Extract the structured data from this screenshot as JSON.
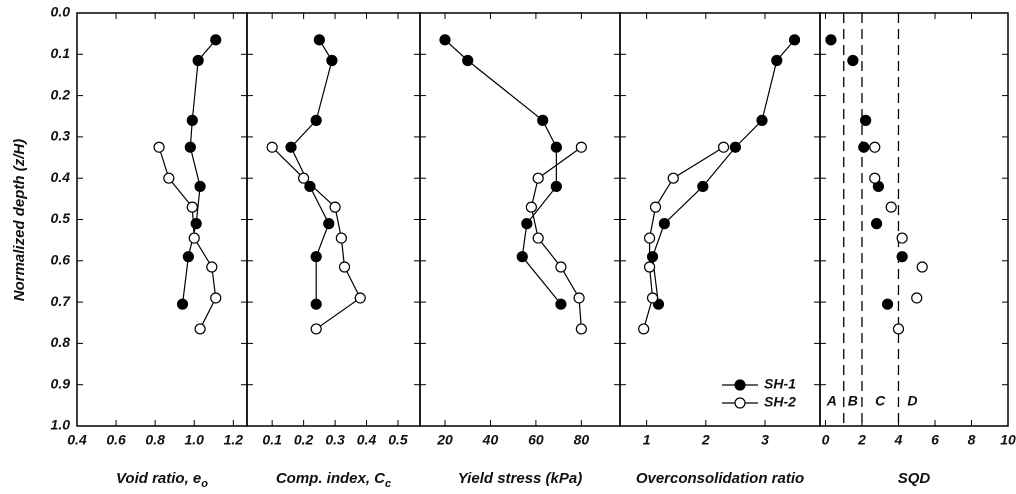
{
  "chart_data": [
    {
      "type": "line",
      "ylabel": "Normalized depth (z/H)",
      "ylim": [
        0,
        1
      ],
      "yticks": [
        {
          "value": 0,
          "label": "0.0"
        },
        0.1,
        0.2,
        0.3,
        0.4,
        0.5,
        0.6,
        0.7,
        0.8,
        0.9,
        {
          "value": 1,
          "label": "1.0"
        }
      ],
      "xlabel": "Void ratio, e",
      "xlabel_sub": "o",
      "xlim": [
        0.4,
        1.27
      ],
      "xticks": [
        0.4,
        0.6,
        0.8,
        {
          "value": 1,
          "label": "1.0"
        },
        1.2
      ],
      "series": [
        {
          "color": "#000000",
          "marker_fill": "#000000",
          "x": [
            1.11,
            1.02,
            0.99,
            0.98,
            1.03,
            1.01,
            0.97,
            0.94
          ],
          "y": [
            0.065,
            0.115,
            0.26,
            0.325,
            0.42,
            0.51,
            0.59,
            0.705
          ]
        },
        {
          "color": "#000000",
          "marker_fill": "#ffffff",
          "x": [
            0.82,
            0.87,
            0.99,
            1.0,
            1.09,
            1.11,
            1.03
          ],
          "y": [
            0.325,
            0.4,
            0.47,
            0.545,
            0.615,
            0.69,
            0.765
          ]
        }
      ]
    },
    {
      "type": "line",
      "xlabel": "Comp. index, C",
      "xlabel_sub": "c",
      "xlim": [
        0.02,
        0.57
      ],
      "xticks": [
        0.1,
        0.2,
        0.3,
        0.4,
        0.5
      ],
      "series": [
        {
          "color": "#000000",
          "marker_fill": "#000000",
          "x": [
            0.25,
            0.29,
            0.24,
            0.16,
            0.22,
            0.28,
            0.24,
            0.24
          ],
          "y": [
            0.065,
            0.115,
            0.26,
            0.325,
            0.42,
            0.51,
            0.59,
            0.705
          ]
        },
        {
          "color": "#000000",
          "marker_fill": "#ffffff",
          "x": [
            0.1,
            0.2,
            0.3,
            0.32,
            0.33,
            0.38,
            0.24
          ],
          "y": [
            0.325,
            0.4,
            0.47,
            0.545,
            0.615,
            0.69,
            0.765
          ]
        }
      ]
    },
    {
      "type": "line",
      "xlabel": "Yield stress (kPa)",
      "xlim": [
        9,
        97
      ],
      "xticks": [
        20,
        40,
        60,
        80
      ],
      "series": [
        {
          "color": "#000000",
          "marker_fill": "#000000",
          "x": [
            20,
            30,
            63,
            69,
            69,
            56,
            54,
            71
          ],
          "y": [
            0.065,
            0.115,
            0.26,
            0.325,
            0.42,
            0.51,
            0.59,
            0.705
          ]
        },
        {
          "color": "#000000",
          "marker_fill": "#ffffff",
          "x": [
            80,
            61,
            58,
            61,
            71,
            79,
            80
          ],
          "y": [
            0.325,
            0.4,
            0.47,
            0.545,
            0.615,
            0.69,
            0.765
          ]
        }
      ]
    },
    {
      "type": "line",
      "xlabel": "Overconsolidation ratio",
      "xlim": [
        0.55,
        3.93
      ],
      "xticks": [
        1,
        2,
        3
      ],
      "series": [
        {
          "name": "SH-1",
          "color": "#000000",
          "marker_fill": "#000000",
          "x": [
            3.5,
            3.2,
            2.95,
            2.5,
            1.95,
            1.3,
            1.1,
            1.2
          ],
          "y": [
            0.065,
            0.115,
            0.26,
            0.325,
            0.42,
            0.51,
            0.59,
            0.705
          ]
        },
        {
          "name": "SH-2",
          "color": "#000000",
          "marker_fill": "#ffffff",
          "x": [
            2.3,
            1.45,
            1.15,
            1.05,
            1.05,
            1.1,
            0.95
          ],
          "y": [
            0.325,
            0.4,
            0.47,
            0.545,
            0.615,
            0.69,
            0.765
          ]
        }
      ]
    },
    {
      "type": "scatter",
      "xlabel": "SQD",
      "xlim": [
        -0.3,
        10
      ],
      "xticks": [
        0,
        2,
        4,
        6,
        8,
        10
      ],
      "zone_bounds": [
        1,
        2,
        4
      ],
      "zones": [
        "A",
        "B",
        "C",
        "D"
      ],
      "series": [
        {
          "color": "#000000",
          "marker_fill": "#000000",
          "x": [
            0.3,
            1.5,
            2.2,
            2.1,
            2.9,
            2.8,
            4.2,
            3.4
          ],
          "y": [
            0.065,
            0.115,
            0.26,
            0.325,
            0.42,
            0.51,
            0.59,
            0.705
          ]
        },
        {
          "color": "#000000",
          "marker_fill": "#ffffff",
          "x": [
            2.7,
            2.7,
            3.6,
            4.2,
            5.3,
            5.0,
            4.0
          ],
          "y": [
            0.325,
            0.4,
            0.47,
            0.545,
            0.615,
            0.69,
            0.765
          ]
        }
      ]
    }
  ]
}
